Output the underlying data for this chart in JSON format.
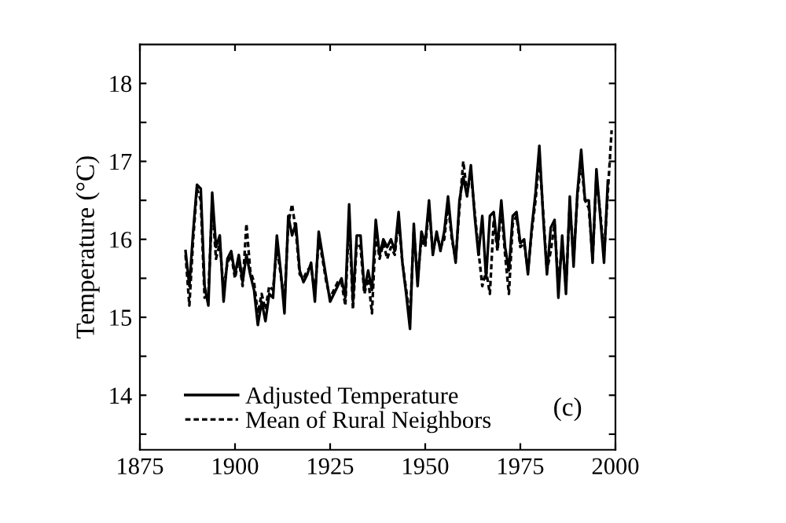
{
  "chart_data": {
    "type": "line",
    "ylabel": "Temperature (°C)",
    "xlim": [
      1875,
      2000
    ],
    "xticks": [
      1875,
      1900,
      1925,
      1950,
      1975,
      2000
    ],
    "ylim": [
      13.3,
      18.5
    ],
    "yticks": [
      {
        "value": 13.5,
        "label": null
      },
      14,
      {
        "value": 14.5,
        "label": null
      },
      15,
      {
        "value": 15.5,
        "label": null
      },
      16,
      {
        "value": 16.5,
        "label": null
      },
      17,
      {
        "value": 17.5,
        "label": null
      },
      18
    ],
    "grid": false,
    "legend": "bottom left",
    "annotations": [
      "(c)"
    ],
    "series": [
      {
        "name": "Adjusted Temperature",
        "color": "#000000",
        "line_style": "solid",
        "x": [
          1887,
          1888,
          1889,
          1890,
          1891,
          1892,
          1893,
          1894,
          1895,
          1896,
          1897,
          1898,
          1899,
          1900,
          1901,
          1902,
          1903,
          1904,
          1905,
          1906,
          1907,
          1908,
          1909,
          1910,
          1911,
          1912,
          1913,
          1914,
          1915,
          1916,
          1917,
          1918,
          1919,
          1920,
          1921,
          1922,
          1923,
          1924,
          1925,
          1926,
          1927,
          1928,
          1929,
          1930,
          1931,
          1932,
          1933,
          1934,
          1935,
          1936,
          1937,
          1938,
          1939,
          1940,
          1941,
          1942,
          1943,
          1944,
          1945,
          1946,
          1947,
          1948,
          1949,
          1950,
          1951,
          1952,
          1953,
          1954,
          1955,
          1956,
          1957,
          1958,
          1959,
          1960,
          1961,
          1962,
          1963,
          1964,
          1965,
          1966,
          1967,
          1968,
          1969,
          1970,
          1971,
          1972,
          1973,
          1974,
          1975,
          1976,
          1977,
          1978,
          1979,
          1980,
          1981,
          1982,
          1983,
          1984,
          1985,
          1986,
          1987,
          1988,
          1989,
          1990,
          1991,
          1992,
          1993,
          1994,
          1995,
          1996,
          1997,
          1998
        ],
        "values": [
          15.85,
          15.4,
          16.1,
          16.7,
          16.65,
          15.4,
          15.15,
          16.6,
          15.9,
          16.05,
          15.2,
          15.75,
          15.85,
          15.55,
          15.8,
          15.45,
          15.8,
          15.55,
          15.35,
          14.9,
          15.2,
          14.95,
          15.3,
          15.25,
          16.05,
          15.6,
          15.05,
          16.3,
          16.05,
          16.2,
          15.6,
          15.45,
          15.55,
          15.7,
          15.2,
          16.1,
          15.8,
          15.5,
          15.2,
          15.3,
          15.4,
          15.5,
          15.25,
          16.45,
          15.2,
          16.05,
          16.05,
          15.35,
          15.6,
          15.35,
          16.25,
          15.8,
          16.0,
          15.9,
          16.0,
          15.85,
          16.35,
          15.7,
          15.3,
          14.85,
          16.2,
          15.4,
          16.1,
          15.95,
          16.5,
          15.8,
          16.1,
          15.85,
          16.1,
          16.55,
          16.05,
          15.7,
          16.5,
          16.8,
          16.55,
          16.95,
          16.3,
          15.8,
          16.3,
          15.5,
          16.3,
          16.35,
          15.9,
          16.5,
          15.9,
          15.6,
          16.3,
          16.35,
          15.95,
          16.0,
          15.55,
          16.15,
          16.6,
          17.2,
          16.3,
          15.55,
          16.15,
          16.25,
          15.25,
          16.05,
          15.3,
          16.55,
          15.65,
          16.6,
          17.15,
          16.5,
          16.5,
          15.7,
          16.9,
          16.3,
          15.7,
          16.75
        ]
      },
      {
        "name": "Mean of Rural Neighbors",
        "color": "#000000",
        "line_style": "dotted",
        "x": [
          1887,
          1888,
          1889,
          1890,
          1891,
          1892,
          1893,
          1894,
          1895,
          1896,
          1897,
          1898,
          1899,
          1900,
          1901,
          1902,
          1903,
          1904,
          1905,
          1906,
          1907,
          1908,
          1909,
          1910,
          1911,
          1912,
          1913,
          1914,
          1915,
          1916,
          1917,
          1918,
          1919,
          1920,
          1921,
          1922,
          1923,
          1924,
          1925,
          1926,
          1927,
          1928,
          1929,
          1930,
          1931,
          1932,
          1933,
          1934,
          1935,
          1936,
          1937,
          1938,
          1939,
          1940,
          1941,
          1942,
          1943,
          1944,
          1945,
          1946,
          1947,
          1948,
          1949,
          1950,
          1951,
          1952,
          1953,
          1954,
          1955,
          1956,
          1957,
          1958,
          1959,
          1960,
          1961,
          1962,
          1963,
          1964,
          1965,
          1966,
          1967,
          1968,
          1969,
          1970,
          1971,
          1972,
          1973,
          1974,
          1975,
          1976,
          1977,
          1978,
          1979,
          1980,
          1981,
          1982,
          1983,
          1984,
          1985,
          1986,
          1987,
          1988,
          1989,
          1990,
          1991,
          1992,
          1993,
          1994,
          1995,
          1996,
          1997,
          1998,
          1999
        ],
        "values": [
          15.8,
          15.15,
          16.0,
          16.65,
          16.5,
          15.25,
          15.3,
          16.45,
          15.75,
          15.95,
          15.35,
          15.7,
          15.8,
          15.5,
          15.75,
          15.4,
          16.2,
          15.6,
          15.45,
          15.05,
          15.3,
          15.1,
          15.4,
          15.35,
          15.9,
          15.55,
          15.2,
          16.2,
          16.45,
          16.1,
          15.55,
          15.5,
          15.6,
          15.65,
          15.3,
          16.0,
          15.75,
          15.45,
          15.25,
          15.35,
          15.45,
          15.45,
          15.15,
          16.3,
          15.1,
          15.95,
          15.9,
          15.3,
          15.5,
          15.05,
          16.1,
          15.75,
          15.95,
          15.75,
          15.9,
          15.8,
          16.25,
          15.7,
          15.35,
          15.0,
          16.1,
          15.5,
          16.0,
          15.9,
          16.4,
          15.85,
          16.05,
          15.9,
          16.0,
          16.45,
          16.0,
          15.75,
          16.4,
          17.0,
          16.6,
          16.85,
          16.35,
          15.85,
          15.4,
          15.6,
          15.3,
          16.25,
          15.85,
          16.4,
          15.8,
          15.3,
          16.2,
          16.3,
          15.9,
          15.95,
          15.6,
          16.1,
          16.5,
          17.05,
          16.35,
          15.6,
          15.85,
          16.2,
          15.4,
          15.95,
          15.4,
          16.45,
          15.75,
          16.55,
          17.0,
          16.5,
          16.4,
          15.75,
          16.8,
          16.35,
          15.8,
          16.6,
          17.4
        ]
      }
    ]
  }
}
